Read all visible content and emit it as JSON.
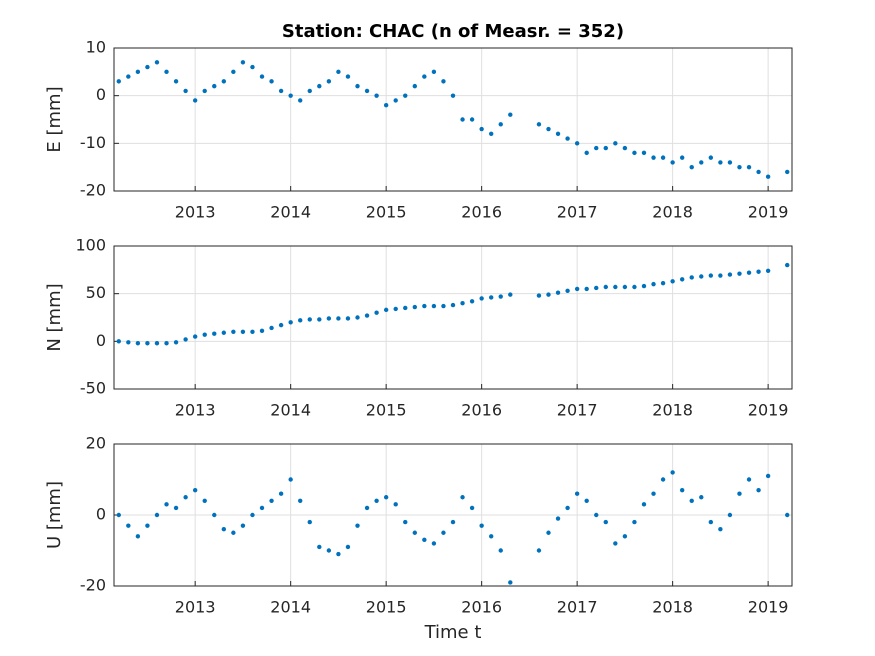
{
  "chart_data": [
    {
      "type": "scatter",
      "title": "Station: CHAC (n of Measr. = 352)",
      "ylabel": "E [mm]",
      "color": "#0072bd",
      "grid": true,
      "xlim": [
        2012.15,
        2019.25
      ],
      "xticks": [
        2013,
        2014,
        2015,
        2016,
        2017,
        2018,
        2019
      ],
      "ylim": [
        -20,
        10
      ],
      "yticks": [
        -20,
        -10,
        0,
        10
      ],
      "x": [
        2012.2,
        2012.3,
        2012.4,
        2012.5,
        2012.6,
        2012.7,
        2012.8,
        2012.9,
        2013.0,
        2013.1,
        2013.2,
        2013.3,
        2013.4,
        2013.5,
        2013.6,
        2013.7,
        2013.8,
        2013.9,
        2014.0,
        2014.1,
        2014.2,
        2014.3,
        2014.4,
        2014.5,
        2014.6,
        2014.7,
        2014.8,
        2014.9,
        2015.0,
        2015.1,
        2015.2,
        2015.3,
        2015.4,
        2015.5,
        2015.6,
        2015.7,
        2015.8,
        2015.9,
        2016.0,
        2016.1,
        2016.2,
        2016.3,
        2016.6,
        2016.7,
        2016.8,
        2016.9,
        2017.0,
        2017.1,
        2017.2,
        2017.3,
        2017.4,
        2017.5,
        2017.6,
        2017.7,
        2017.8,
        2017.9,
        2018.0,
        2018.1,
        2018.2,
        2018.3,
        2018.4,
        2018.5,
        2018.6,
        2018.7,
        2018.8,
        2018.9,
        2019.0,
        2019.2
      ],
      "values": [
        3,
        4,
        5,
        6,
        7,
        5,
        3,
        1,
        -1,
        1,
        2,
        3,
        5,
        7,
        6,
        4,
        3,
        1,
        0,
        -1,
        1,
        2,
        3,
        5,
        4,
        2,
        1,
        0,
        -2,
        -1,
        0,
        2,
        4,
        5,
        3,
        0,
        -5,
        -5,
        -7,
        -8,
        -6,
        -4,
        -6,
        -7,
        -8,
        -9,
        -10,
        -12,
        -11,
        -11,
        -10,
        -11,
        -12,
        -12,
        -13,
        -13,
        -14,
        -13,
        -15,
        -14,
        -13,
        -14,
        -14,
        -15,
        -15,
        -16,
        -17,
        -16
      ]
    },
    {
      "type": "scatter",
      "ylabel": "N [mm]",
      "color": "#0072bd",
      "grid": true,
      "xlim": [
        2012.15,
        2019.25
      ],
      "xticks": [
        2013,
        2014,
        2015,
        2016,
        2017,
        2018,
        2019
      ],
      "ylim": [
        -50,
        100
      ],
      "yticks": [
        -50,
        0,
        50,
        100
      ],
      "x": [
        2012.2,
        2012.3,
        2012.4,
        2012.5,
        2012.6,
        2012.7,
        2012.8,
        2012.9,
        2013.0,
        2013.1,
        2013.2,
        2013.3,
        2013.4,
        2013.5,
        2013.6,
        2013.7,
        2013.8,
        2013.9,
        2014.0,
        2014.1,
        2014.2,
        2014.3,
        2014.4,
        2014.5,
        2014.6,
        2014.7,
        2014.8,
        2014.9,
        2015.0,
        2015.1,
        2015.2,
        2015.3,
        2015.4,
        2015.5,
        2015.6,
        2015.7,
        2015.8,
        2015.9,
        2016.0,
        2016.1,
        2016.2,
        2016.3,
        2016.6,
        2016.7,
        2016.8,
        2016.9,
        2017.0,
        2017.1,
        2017.2,
        2017.3,
        2017.4,
        2017.5,
        2017.6,
        2017.7,
        2017.8,
        2017.9,
        2018.0,
        2018.1,
        2018.2,
        2018.3,
        2018.4,
        2018.5,
        2018.6,
        2018.7,
        2018.8,
        2018.9,
        2019.0,
        2019.2
      ],
      "values": [
        0,
        -1,
        -2,
        -2,
        -2,
        -2,
        -1,
        2,
        5,
        7,
        8,
        9,
        10,
        10,
        10,
        11,
        14,
        17,
        20,
        22,
        23,
        23,
        24,
        24,
        24,
        25,
        27,
        30,
        33,
        34,
        35,
        36,
        37,
        37,
        37,
        38,
        40,
        42,
        45,
        46,
        47,
        49,
        48,
        49,
        51,
        53,
        55,
        55,
        56,
        57,
        57,
        57,
        57,
        58,
        60,
        61,
        63,
        65,
        67,
        68,
        69,
        69,
        70,
        71,
        72,
        73,
        74,
        80
      ]
    },
    {
      "type": "scatter",
      "ylabel": "U [mm]",
      "xlabel": "Time t",
      "color": "#0072bd",
      "grid": true,
      "xlim": [
        2012.15,
        2019.25
      ],
      "xticks": [
        2013,
        2014,
        2015,
        2016,
        2017,
        2018,
        2019
      ],
      "ylim": [
        -20,
        20
      ],
      "yticks": [
        -20,
        0,
        20
      ],
      "x": [
        2012.2,
        2012.3,
        2012.4,
        2012.5,
        2012.6,
        2012.7,
        2012.8,
        2012.9,
        2013.0,
        2013.1,
        2013.2,
        2013.3,
        2013.4,
        2013.5,
        2013.6,
        2013.7,
        2013.8,
        2013.9,
        2014.0,
        2014.1,
        2014.2,
        2014.3,
        2014.4,
        2014.5,
        2014.6,
        2014.7,
        2014.8,
        2014.9,
        2015.0,
        2015.1,
        2015.2,
        2015.3,
        2015.4,
        2015.5,
        2015.6,
        2015.7,
        2015.8,
        2015.9,
        2016.0,
        2016.1,
        2016.2,
        2016.3,
        2016.6,
        2016.7,
        2016.8,
        2016.9,
        2017.0,
        2017.1,
        2017.2,
        2017.3,
        2017.4,
        2017.5,
        2017.6,
        2017.7,
        2017.8,
        2017.9,
        2018.0,
        2018.1,
        2018.2,
        2018.3,
        2018.4,
        2018.5,
        2018.6,
        2018.7,
        2018.8,
        2018.9,
        2019.0,
        2019.2
      ],
      "values": [
        0,
        -3,
        -6,
        -3,
        0,
        3,
        2,
        5,
        7,
        4,
        0,
        -4,
        -5,
        -3,
        0,
        2,
        4,
        6,
        10,
        4,
        -2,
        -9,
        -10,
        -11,
        -9,
        -3,
        2,
        4,
        5,
        3,
        -2,
        -5,
        -7,
        -8,
        -5,
        -2,
        5,
        2,
        -3,
        -6,
        -10,
        -19,
        -10,
        -5,
        -1,
        2,
        6,
        4,
        0,
        -2,
        -8,
        -6,
        -2,
        3,
        6,
        10,
        12,
        7,
        4,
        5,
        -2,
        -4,
        0,
        6,
        10,
        7,
        11,
        0
      ]
    }
  ]
}
